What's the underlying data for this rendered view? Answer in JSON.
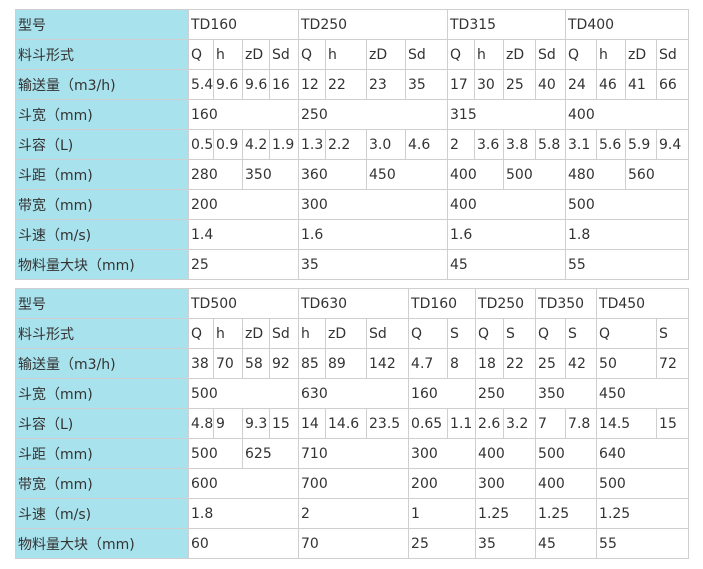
{
  "table": {
    "rows": [
      [
        "型号",
        "TD160",
        "TD250",
        "TD315",
        "TD400"
      ],
      [
        "料斗形式",
        "Q",
        "h",
        "zD",
        "Sd",
        "Q",
        "h",
        "zD",
        "Sd",
        "Q",
        "h",
        "zD",
        "Sd",
        "Q",
        "h",
        "zD",
        "Sd"
      ],
      [
        "输送量（m3/h)",
        "5.4",
        "9.6",
        "9.6",
        "16",
        "12",
        "22",
        "23",
        "35",
        "17",
        "30",
        "25",
        "40",
        "24",
        "46",
        "41",
        "66"
      ],
      [
        "斗宽（mm)",
        "160",
        "250",
        "315",
        "400"
      ],
      [
        "斗容（L)",
        "0.5",
        "0.9",
        "4.2",
        "1.9",
        "1.3",
        "2.2",
        "3.0",
        "4.6",
        "2",
        "3.6",
        "3.8",
        "5.8",
        "3.1",
        "5.6",
        "5.9",
        "9.4"
      ],
      [
        "斗距（mm)",
        "280",
        "350",
        "360",
        "450",
        "400",
        "500",
        "480",
        "560"
      ],
      [
        "带宽（mm)",
        "200",
        "300",
        "400",
        "500"
      ],
      [
        "斗速（m/s)",
        "1.4",
        "1.6",
        "1.6",
        "1.8"
      ],
      [
        "物料量大块（mm)",
        "25",
        "35",
        "45",
        "55"
      ],
      [
        "型号",
        "TD500",
        "TD630",
        "TD160",
        "TD250",
        "TD350",
        "TD450"
      ],
      [
        "料斗形式",
        "Q",
        "h",
        "zD",
        "Sd",
        "h",
        "zD",
        "Sd",
        "Q",
        "S",
        "Q",
        "S",
        "Q",
        "S",
        "Q",
        "S"
      ],
      [
        "输送量（m3/h)",
        "38",
        "70",
        "58",
        "92",
        "85",
        "89",
        "142",
        "4.7",
        "8",
        "18",
        "22",
        "25",
        "42",
        "50",
        "72"
      ],
      [
        "斗宽（mm)",
        "500",
        "630",
        "160",
        "250",
        "350",
        "450"
      ],
      [
        "斗容（L)",
        "4.8",
        "9",
        "9.3",
        "15",
        "14",
        "14.6",
        "23.5",
        "0.65",
        "1.1",
        "2.6",
        "3.2",
        "7",
        "7.8",
        "14.5",
        "15"
      ],
      [
        "斗距（mm)",
        "500",
        "625",
        "710",
        "300",
        "400",
        "500",
        "640"
      ],
      [
        "带宽（mm)",
        "600",
        "700",
        "200",
        "300",
        "400",
        "500"
      ],
      [
        "斗速（m/s)",
        "1.8",
        "2",
        "1",
        "1.25",
        "1.25",
        "1.25"
      ],
      [
        "物料量大块（mm)",
        "60",
        "70",
        "25",
        "35",
        "45",
        "55"
      ]
    ]
  }
}
